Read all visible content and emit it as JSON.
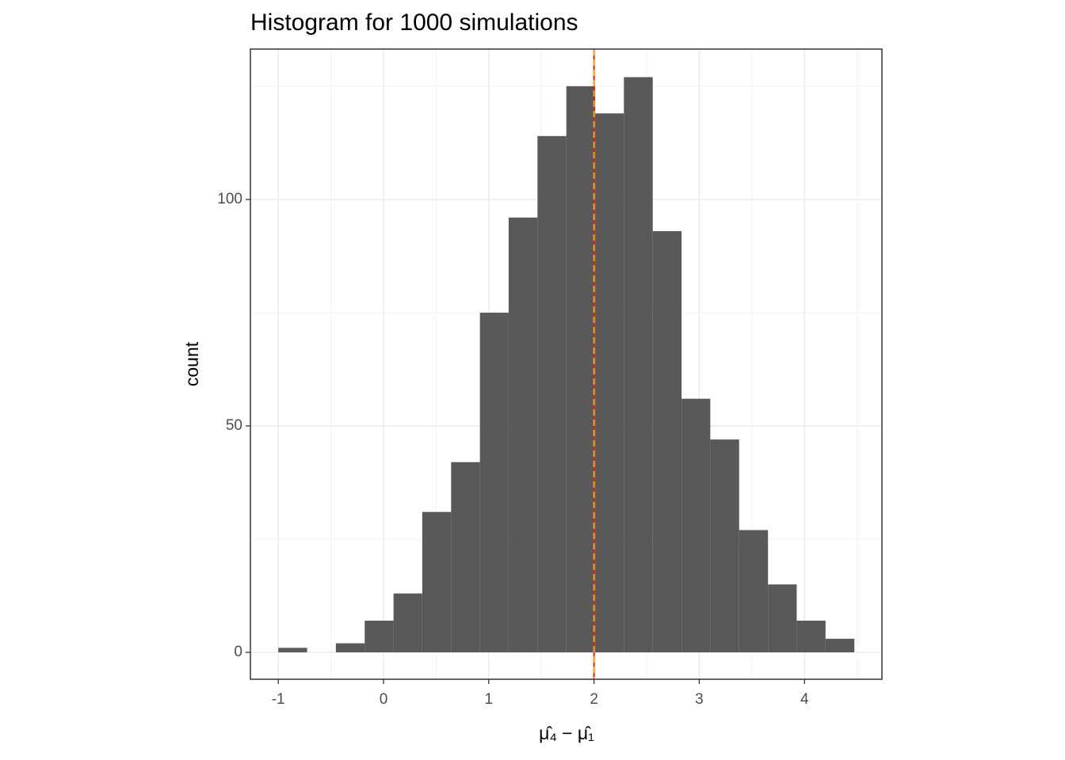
{
  "chart_data": {
    "type": "histogram",
    "title": "Histogram for 1000 simulations",
    "x_label": "μ̂₄ − μ̂₁",
    "y_label": "count",
    "bins": [
      -1,
      -0.726,
      -0.453,
      -0.179,
      0.095,
      0.368,
      0.642,
      0.916,
      1.189,
      1.463,
      1.737,
      2.011,
      2.284,
      2.558,
      2.832,
      3.105,
      3.379,
      3.653,
      3.926,
      4.2,
      4.474
    ],
    "values": [
      1,
      0,
      2,
      7,
      13,
      31,
      42,
      75,
      96,
      114,
      125,
      119,
      127,
      93,
      56,
      47,
      27,
      15,
      7,
      3
    ],
    "color": "#595959",
    "xlim": [
      -1.265,
      4.736
    ],
    "ylim": [
      -5.94,
      133.2
    ],
    "xticks": [
      -1,
      0,
      1,
      2,
      3,
      4
    ],
    "yticks": [
      0,
      50,
      100
    ],
    "grid": true,
    "vlines": [
      {
        "value": 2,
        "color": "#e41a1c",
        "dashed": false
      },
      {
        "value": 2,
        "color": "#ffa500",
        "dashed": true
      }
    ]
  }
}
